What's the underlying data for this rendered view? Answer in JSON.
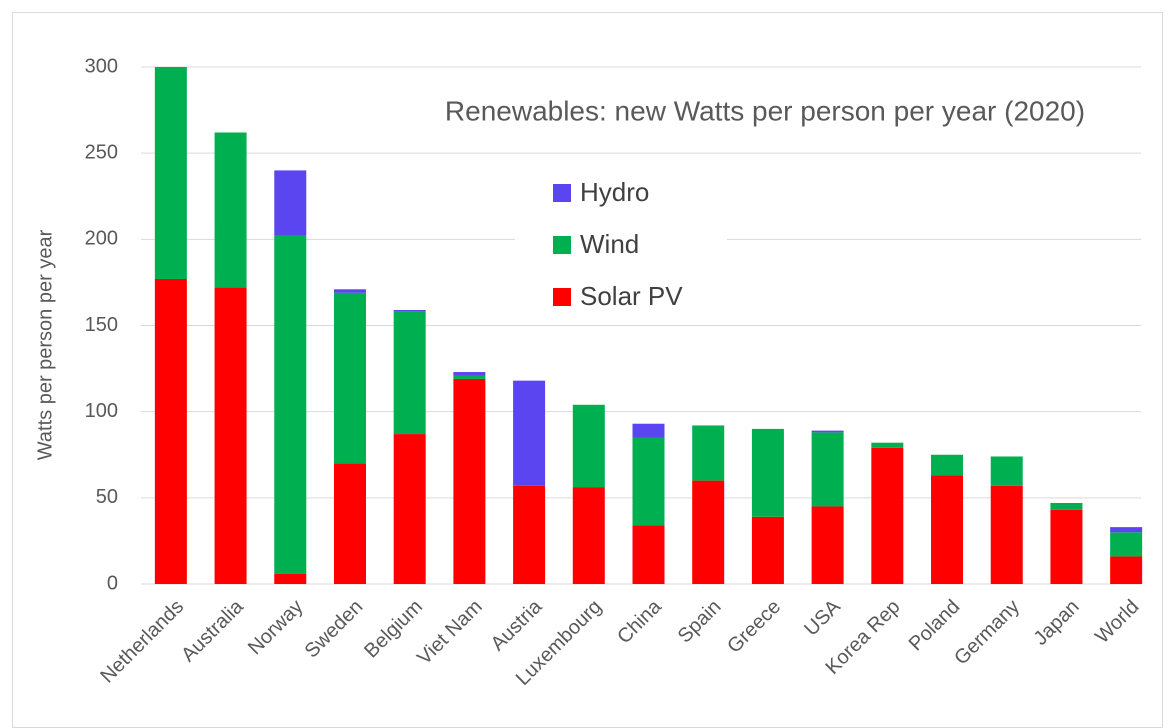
{
  "chart_data": {
    "type": "stacked_bar",
    "title": "Renewables: new Watts per person per year (2020)",
    "y_label": "Watts per person per year",
    "categories": [
      "Netherlands",
      "Australia",
      "Norway",
      "Sweden",
      "Belgium",
      "Viet Nam",
      "Austria",
      "Luxembourg",
      "China",
      "Spain",
      "Greece",
      "USA",
      "Korea Rep",
      "Poland",
      "Germany",
      "Japan",
      "World"
    ],
    "series": [
      {
        "name": "Solar PV",
        "color": "#ff0000",
        "values": [
          177,
          172,
          6,
          70,
          87,
          119,
          57,
          56,
          34,
          60,
          39,
          45,
          79,
          63,
          57,
          43,
          16
        ]
      },
      {
        "name": "Wind",
        "color": "#00b050",
        "values": [
          123,
          90,
          196,
          99,
          71,
          2,
          0,
          48,
          51,
          32,
          51,
          43,
          3,
          12,
          17,
          4,
          14
        ]
      },
      {
        "name": "Hydro",
        "color": "#5b45f0",
        "values": [
          0,
          0,
          38,
          2,
          1,
          2,
          61,
          0,
          8,
          0,
          0,
          1,
          0,
          0,
          0,
          0,
          3
        ]
      }
    ],
    "ylim": [
      0,
      300
    ],
    "yticks": [
      0,
      50,
      100,
      150,
      200,
      250,
      300
    ],
    "grid": true
  }
}
